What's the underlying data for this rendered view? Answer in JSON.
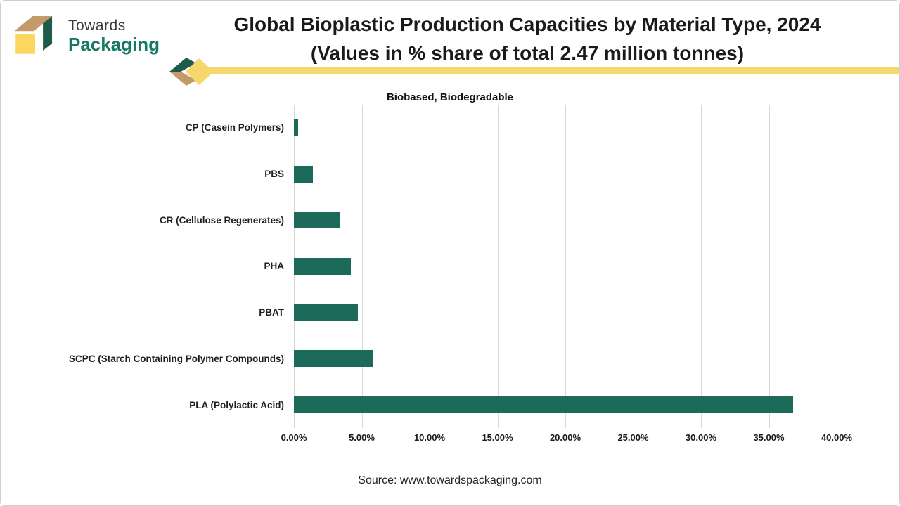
{
  "logo": {
    "line1": "Towards",
    "line2": "Packaging"
  },
  "title": {
    "line1": "Global Bioplastic Production Capacities by Material Type, 2024",
    "line2": "(Values in % share of total 2.47 million tonnes)"
  },
  "chart_data": {
    "type": "bar",
    "orientation": "horizontal",
    "title": "Biobased, Biodegradable",
    "categories": [
      "CP (Casein Polymers)",
      "PBS",
      "CR (Cellulose Regenerates)",
      "PHA",
      "PBAT",
      "SCPC (Starch Containing Polymer Compounds)",
      "PLA (Polylactic Acid)"
    ],
    "values": [
      0.3,
      1.4,
      3.4,
      4.2,
      4.7,
      5.8,
      36.8
    ],
    "unit": "%",
    "x_ticks": [
      "0.00%",
      "5.00%",
      "10.00%",
      "15.00%",
      "20.00%",
      "25.00%",
      "30.00%",
      "35.00%",
      "40.00%"
    ],
    "xlim": [
      0,
      40
    ],
    "grid": true,
    "bar_color": "#1C6A5A"
  },
  "source": "Source: www.towardspackaging.com",
  "colors": {
    "bar_green": "#1C6A5A",
    "logo_text_green": "#177A63",
    "logo_box_green": "#1D5B4A",
    "accent_tan": "#C59A6B",
    "accent_yellow": "#F5D76E",
    "logo_yellow": "#FAD75F",
    "gridline": "#D8D8D8"
  }
}
